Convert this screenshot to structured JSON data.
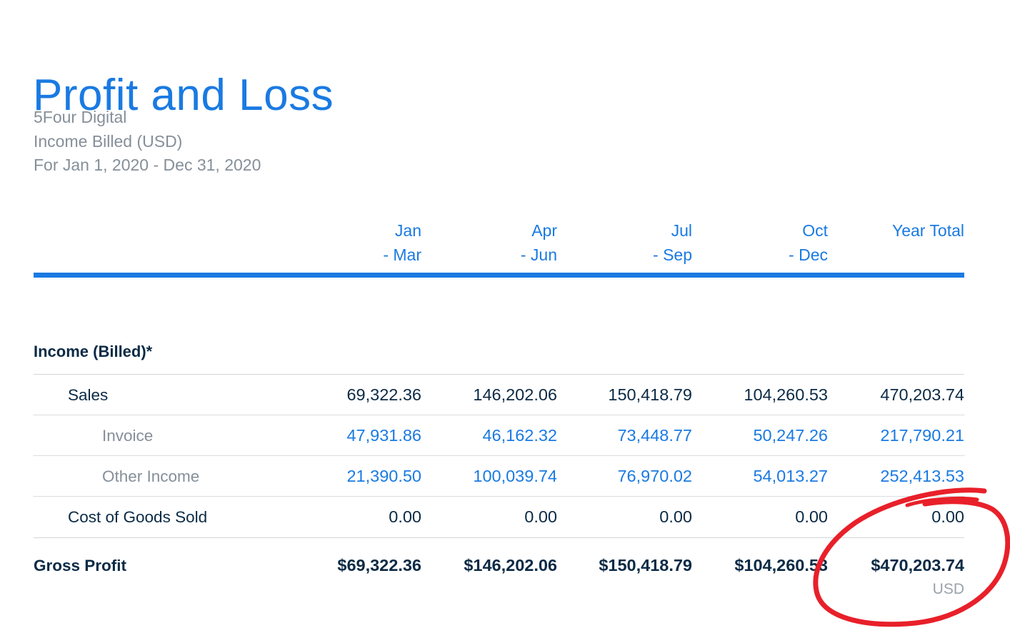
{
  "report": {
    "title": "Profit and Loss",
    "company": "5Four Digital",
    "basis": "Income Billed (USD)",
    "period": "For Jan 1, 2020 - Dec 31, 2020"
  },
  "columns": [
    {
      "line1": "Jan",
      "line2": "- Mar"
    },
    {
      "line1": "Apr",
      "line2": "- Jun"
    },
    {
      "line1": "Jul",
      "line2": "- Sep"
    },
    {
      "line1": "Oct",
      "line2": "- Dec"
    },
    {
      "line1": "Year Total",
      "line2": ""
    }
  ],
  "section": {
    "title": "Income (Billed)*"
  },
  "rows": [
    {
      "label": "Sales",
      "values": [
        "69,322.36",
        "146,202.06",
        "150,418.79",
        "104,260.53",
        "470,203.74"
      ]
    },
    {
      "label": "Invoice",
      "values": [
        "47,931.86",
        "46,162.32",
        "73,448.77",
        "50,247.26",
        "217,790.21"
      ]
    },
    {
      "label": "Other Income",
      "values": [
        "21,390.50",
        "100,039.74",
        "76,970.02",
        "54,013.27",
        "252,413.53"
      ]
    },
    {
      "label": "Cost of Goods Sold",
      "values": [
        "0.00",
        "0.00",
        "0.00",
        "0.00",
        "0.00"
      ]
    }
  ],
  "gross_profit": {
    "label": "Gross Profit",
    "values": [
      "$69,322.36",
      "$146,202.06",
      "$150,418.79",
      "$104,260.53",
      "$470,203.74"
    ],
    "currency": "USD"
  },
  "colors": {
    "accent": "#1a7ae2",
    "text_dark": "#0b2a45",
    "text_muted": "#858f99",
    "annotation": "#e8202a"
  }
}
